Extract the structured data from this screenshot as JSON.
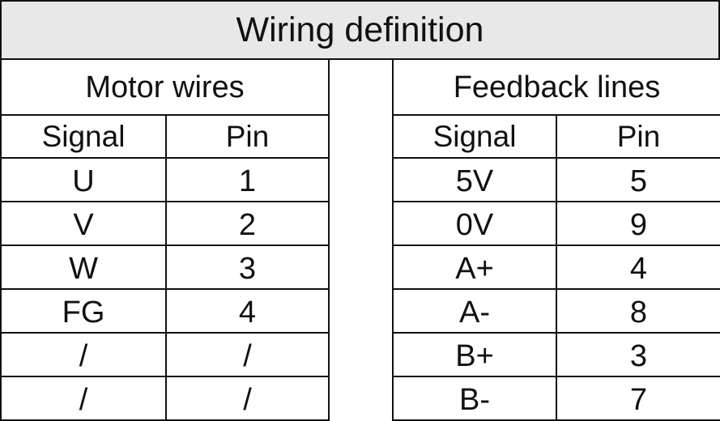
{
  "title": "Wiring definition",
  "motor": {
    "heading": "Motor wires",
    "columns": [
      "Signal",
      "Pin"
    ],
    "rows": [
      [
        "U",
        "1"
      ],
      [
        "V",
        "2"
      ],
      [
        "W",
        "3"
      ],
      [
        "FG",
        "4"
      ],
      [
        "/",
        "/"
      ],
      [
        "/",
        "/"
      ]
    ]
  },
  "feedback": {
    "heading": "Feedback lines",
    "columns": [
      "Signal",
      "Pin"
    ],
    "rows": [
      [
        "5V",
        "5"
      ],
      [
        "0V",
        "9"
      ],
      [
        "A+",
        "4"
      ],
      [
        "A-",
        "8"
      ],
      [
        "B+",
        "3"
      ],
      [
        "B-",
        "7"
      ]
    ]
  }
}
